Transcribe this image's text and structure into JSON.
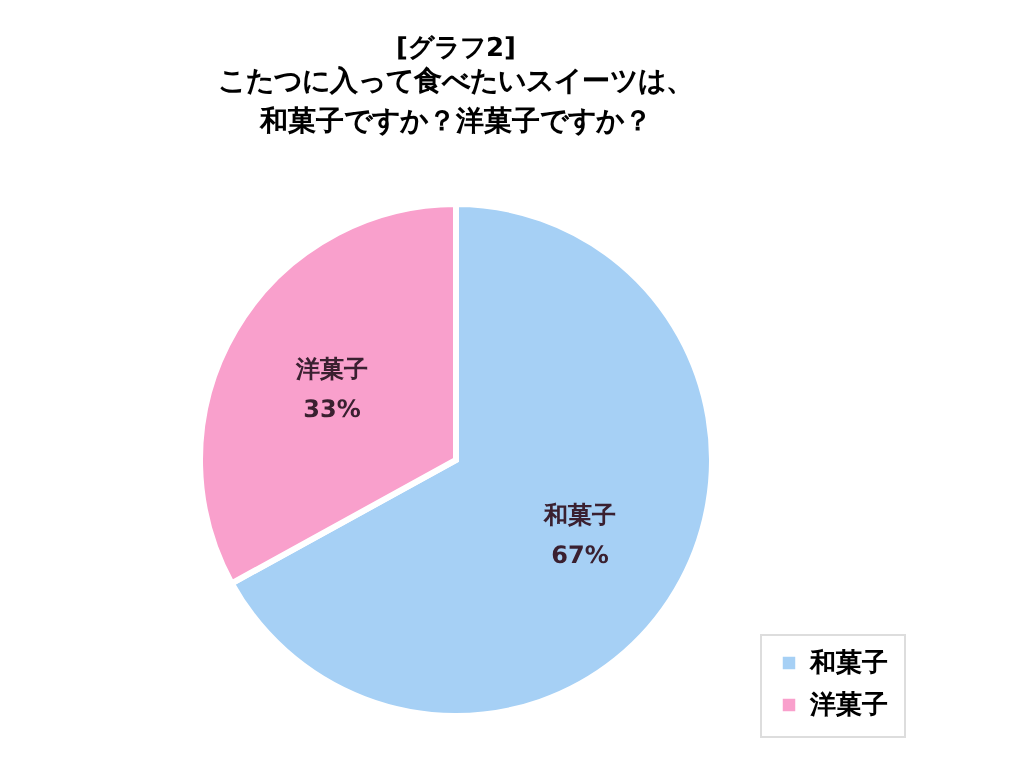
{
  "chart_data": {
    "type": "pie",
    "title": "[グラフ2]",
    "subtitle": "こたつに入って食べたいスイーツは、和菓子ですか？洋菓子ですか？",
    "categories": [
      "和菓子",
      "洋菓子"
    ],
    "values": [
      67,
      33
    ],
    "colors": [
      "#a6d0f5",
      "#f9a0cc"
    ],
    "value_labels": [
      "67%",
      "33%"
    ],
    "legend": "bottom right"
  }
}
